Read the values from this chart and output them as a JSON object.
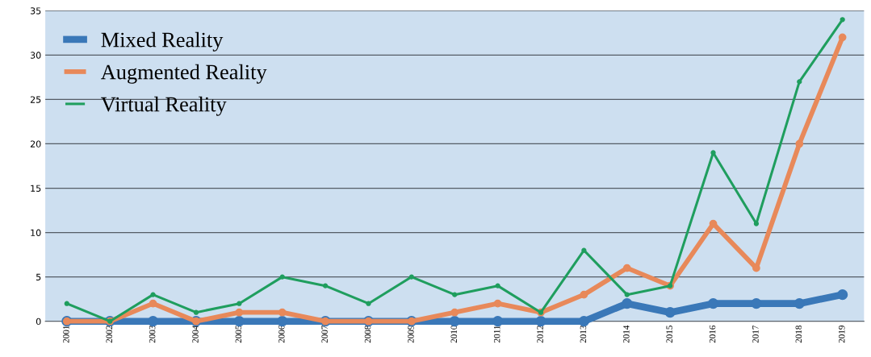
{
  "chart_data": {
    "type": "line",
    "categories": [
      "2001",
      "2002",
      "2003",
      "2004",
      "2005",
      "2006",
      "2007",
      "2008",
      "2009",
      "2010",
      "2011",
      "2012",
      "2013",
      "2014",
      "2015",
      "2016",
      "2017",
      "2018",
      "2019"
    ],
    "series": [
      {
        "name": "Mixed Reality",
        "color": "#3a78b8",
        "values": [
          0,
          0,
          0,
          0,
          0,
          0,
          0,
          0,
          0,
          0,
          0,
          0,
          0,
          2,
          1,
          2,
          2,
          2,
          3
        ]
      },
      {
        "name": "Augmented Reality",
        "color": "#e8895a",
        "values": [
          0,
          0,
          2,
          0,
          1,
          1,
          0,
          0,
          0,
          1,
          2,
          1,
          3,
          6,
          4,
          11,
          6,
          20,
          32
        ]
      },
      {
        "name": "Virtual Reality",
        "color": "#1f9e5e",
        "values": [
          2,
          0,
          3,
          1,
          2,
          5,
          4,
          2,
          5,
          3,
          4,
          1,
          8,
          3,
          4,
          19,
          11,
          27,
          34
        ]
      }
    ],
    "ylim": [
      0,
      35
    ],
    "yticks": [
      0,
      5,
      10,
      15,
      20,
      25,
      30,
      35
    ],
    "grid": "y",
    "legend": "top left",
    "marker": "circle",
    "line_style": "solid"
  }
}
